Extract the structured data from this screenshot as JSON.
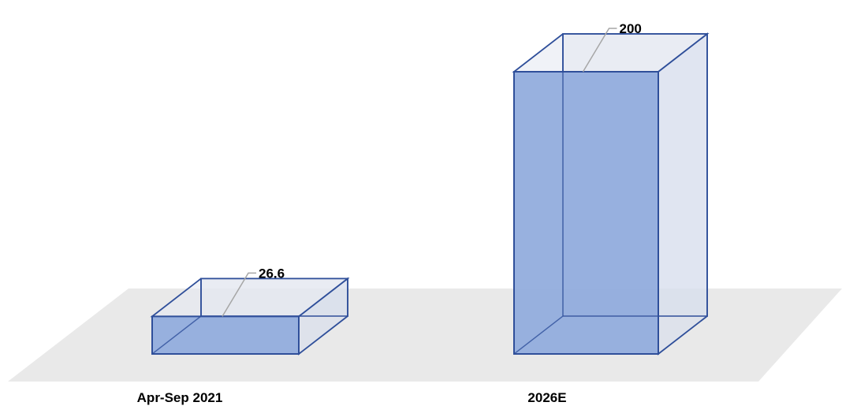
{
  "chart_data": {
    "type": "bar",
    "style": "3d-box",
    "title": "",
    "xlabel": "",
    "ylabel": "",
    "categories": [
      "Apr-Sep 2021",
      "2026E"
    ],
    "series": [
      {
        "values": [
          26.6,
          200
        ]
      }
    ],
    "data_labels": [
      "26.6",
      "200"
    ],
    "ylim": [
      0,
      200
    ],
    "grid": false,
    "legend": "none",
    "colors": {
      "bar_fill": "#8faadc",
      "bar_edge": "#2f4f9a",
      "floor": "#e9e9e9",
      "leader_line": "#a6a6a6"
    }
  }
}
